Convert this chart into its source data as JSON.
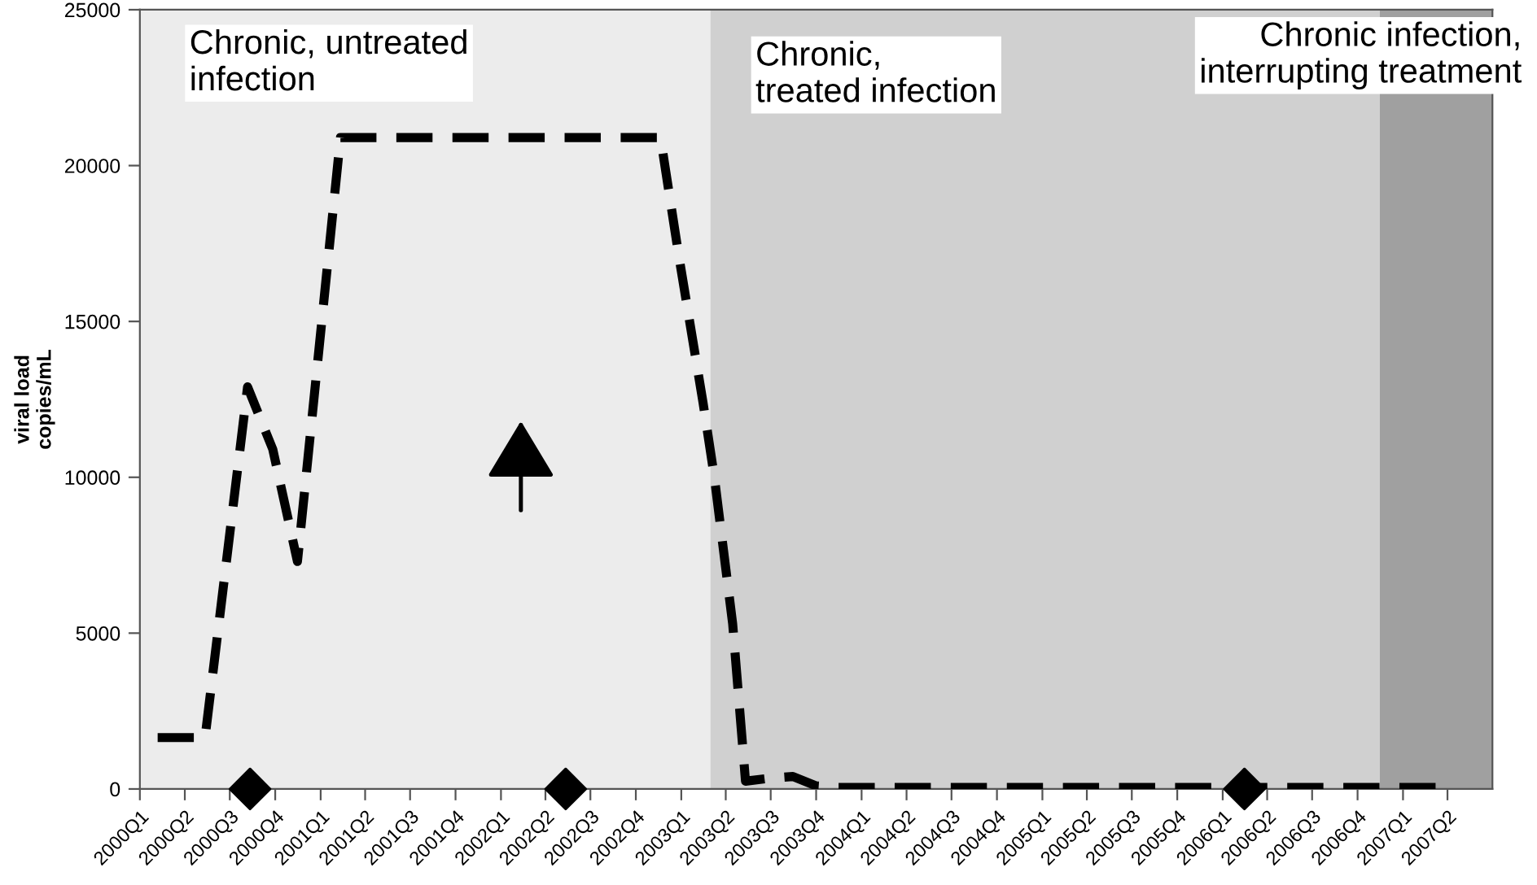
{
  "chart_data": {
    "type": "line",
    "ylabel": "viral load\ncopies/mL",
    "xlim": [
      "2000-01-01",
      "2007-07-01"
    ],
    "xticks": [
      {
        "value": "2000-01-01",
        "label": "2000Q1"
      },
      {
        "value": "2000-04-01",
        "label": "2000Q2"
      },
      {
        "value": "2000-07-01",
        "label": "2000Q3"
      },
      {
        "value": "2000-10-01",
        "label": "2000Q4"
      },
      {
        "value": "2001-01-01",
        "label": "2001Q1"
      },
      {
        "value": "2001-04-01",
        "label": "2001Q2"
      },
      {
        "value": "2001-07-01",
        "label": "2001Q3"
      },
      {
        "value": "2001-10-01",
        "label": "2001Q4"
      },
      {
        "value": "2002-01-01",
        "label": "2002Q1"
      },
      {
        "value": "2002-04-01",
        "label": "2002Q2"
      },
      {
        "value": "2002-07-01",
        "label": "2002Q3"
      },
      {
        "value": "2002-10-01",
        "label": "2002Q4"
      },
      {
        "value": "2003-01-01",
        "label": "2003Q1"
      },
      {
        "value": "2003-04-01",
        "label": "2003Q2"
      },
      {
        "value": "2003-07-01",
        "label": "2003Q3"
      },
      {
        "value": "2003-10-01",
        "label": "2003Q4"
      },
      {
        "value": "2004-01-01",
        "label": "2004Q1"
      },
      {
        "value": "2004-04-01",
        "label": "2004Q2"
      },
      {
        "value": "2004-07-01",
        "label": "2004Q3"
      },
      {
        "value": "2004-10-01",
        "label": "2004Q4"
      },
      {
        "value": "2005-01-01",
        "label": "2005Q1"
      },
      {
        "value": "2005-04-01",
        "label": "2005Q2"
      },
      {
        "value": "2005-07-01",
        "label": "2005Q3"
      },
      {
        "value": "2005-10-01",
        "label": "2005Q4"
      },
      {
        "value": "2006-01-01",
        "label": "2006Q1"
      },
      {
        "value": "2006-04-01",
        "label": "2006Q2"
      },
      {
        "value": "2006-07-01",
        "label": "2006Q3"
      },
      {
        "value": "2006-10-01",
        "label": "2006Q4"
      },
      {
        "value": "2007-01-01",
        "label": "2007Q1"
      },
      {
        "value": "2007-04-01",
        "label": "2007Q2"
      }
    ],
    "ylim": [
      0,
      25000
    ],
    "yticks": [
      0,
      5000,
      10000,
      15000,
      20000,
      25000
    ],
    "grid": false,
    "legend": false,
    "bands": [
      {
        "axis": "x",
        "from": "2000-01-01",
        "to": "2003-03-01",
        "label": "Chronic, untreated\ninfection",
        "color": "#ececec"
      },
      {
        "axis": "x",
        "from": "2003-03-01",
        "to": "2006-11-15",
        "label": "Chronic,\ntreated infection",
        "color": "#d0d0d0"
      },
      {
        "axis": "x",
        "from": "2006-11-15",
        "to": "2007-07-01",
        "label": "Chronic infection,\ninterrupting treatment",
        "color": "#a0a0a0"
      }
    ],
    "series": [
      {
        "color": "#000000",
        "line_style": "dashed",
        "marker": "none",
        "x": [
          "2000-02-06",
          "2000-05-12",
          "2000-08-06",
          "2000-09-26",
          "2000-11-15",
          "2001-02-10",
          "2002-11-20",
          "2002-12-27",
          "2003-02-14",
          "2003-03-09",
          "2003-04-15",
          "2003-05-11",
          "2003-07-01",
          "2003-08-15",
          "2003-10-01",
          "2003-11-15",
          "2007-04-01"
        ],
        "values": [
          1650,
          1650,
          12900,
          10900,
          7300,
          20900,
          20900,
          17100,
          12400,
          10000,
          5300,
          250,
          350,
          400,
          100,
          50,
          50
        ]
      },
      {
        "type": "scatter",
        "color": "#000000",
        "marker": "diamond",
        "x": [
          "2000-08-11",
          "2002-05-12",
          "2006-02-14"
        ],
        "values": [
          0,
          0,
          0
        ]
      }
    ]
  }
}
